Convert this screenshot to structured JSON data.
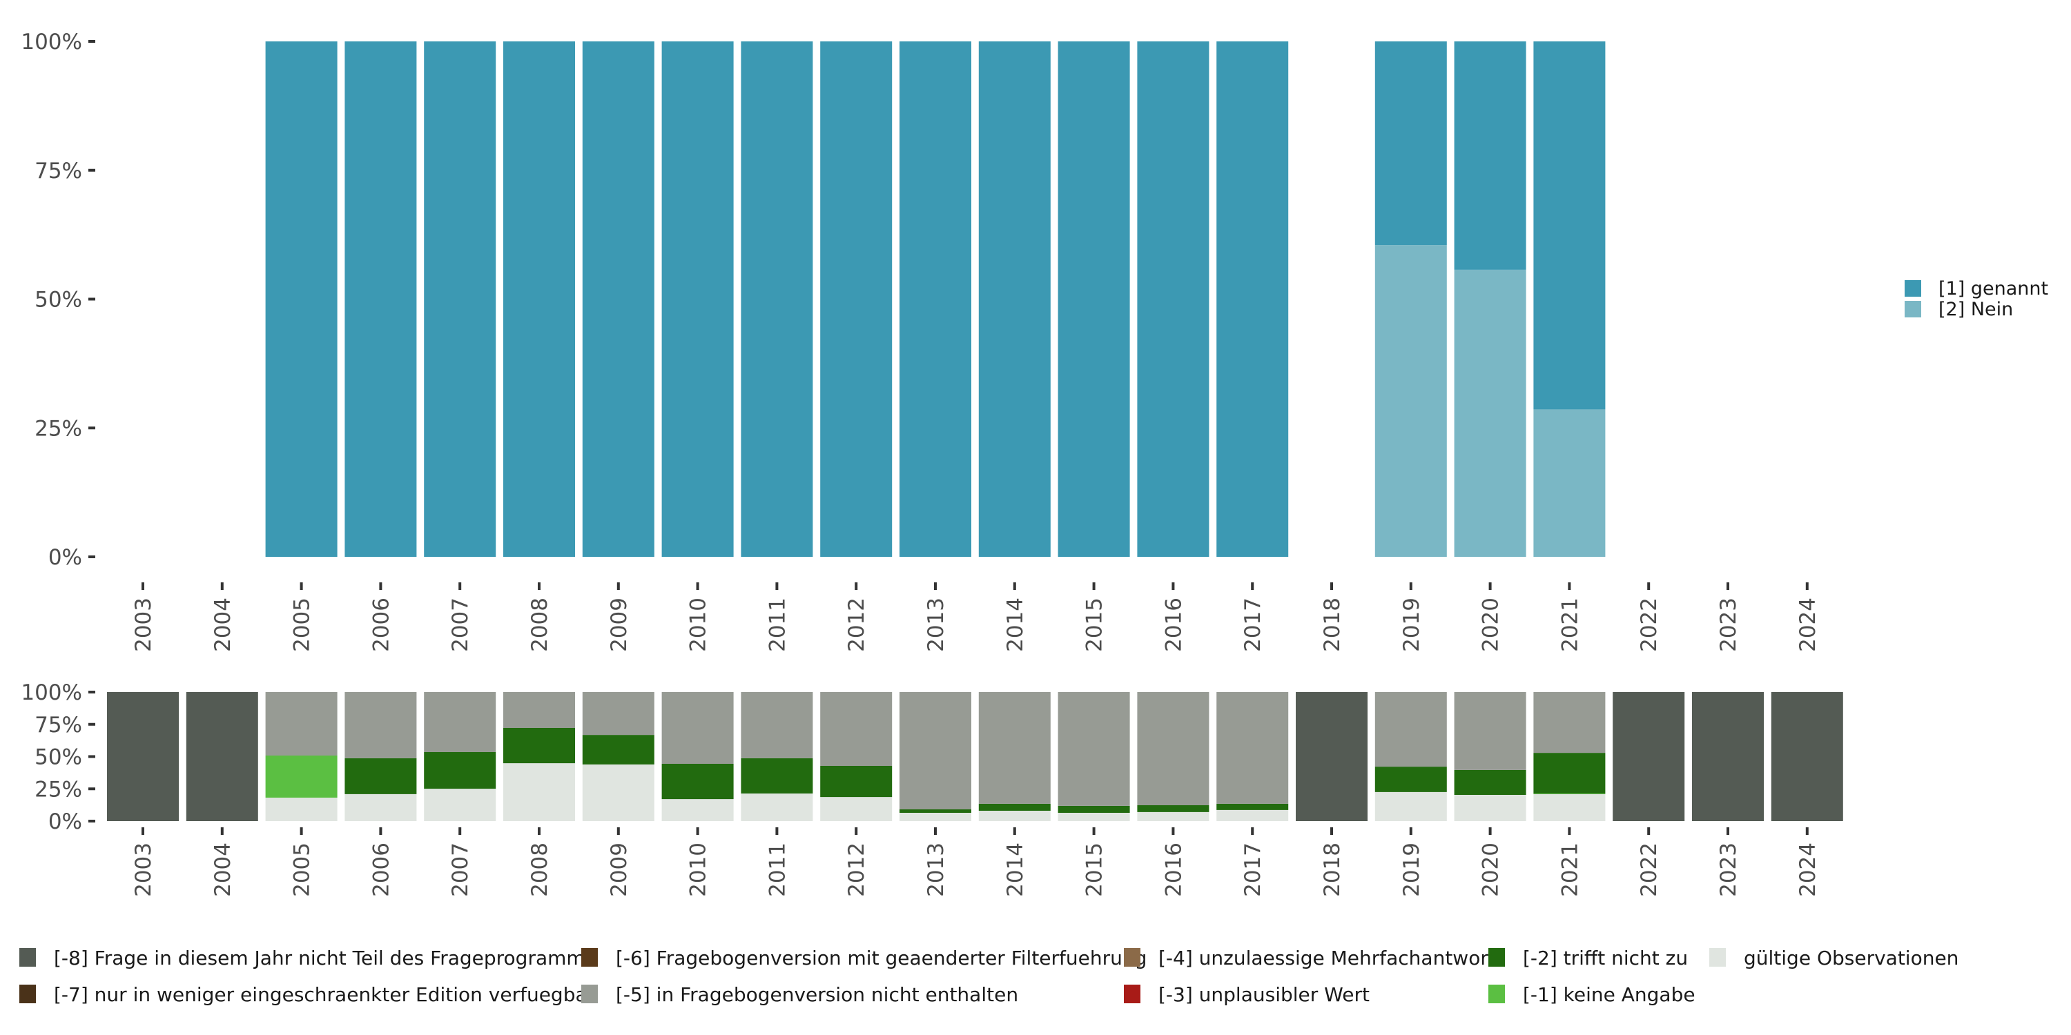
{
  "chart_data": [
    {
      "type": "bar",
      "stacked": true,
      "normalized": true,
      "title": "",
      "xlabel": "",
      "ylabel": "",
      "ylim": [
        0,
        100
      ],
      "y_ticks": [
        "0%",
        "25%",
        "50%",
        "75%",
        "100%"
      ],
      "grid": false,
      "legend_position": "right",
      "categories": [
        "2003",
        "2004",
        "2005",
        "2006",
        "2007",
        "2008",
        "2009",
        "2010",
        "2011",
        "2012",
        "2013",
        "2014",
        "2015",
        "2016",
        "2017",
        "2018",
        "2019",
        "2020",
        "2021",
        "2022",
        "2023",
        "2024"
      ],
      "series": [
        {
          "name": "[2] Nein",
          "color": "#7AB7C5",
          "values": [
            null,
            null,
            0,
            0,
            0,
            0,
            0,
            0,
            0,
            0,
            0,
            0,
            0,
            0,
            0,
            null,
            60.5,
            55.7,
            28.6,
            null,
            null,
            null
          ]
        },
        {
          "name": "[1] genannt",
          "color": "#3C99B3",
          "values": [
            null,
            null,
            100,
            100,
            100,
            100,
            100,
            100,
            100,
            100,
            100,
            100,
            100,
            100,
            100,
            null,
            39.5,
            44.3,
            71.4,
            null,
            null,
            null
          ]
        }
      ],
      "legend": [
        {
          "label": "[1] genannt",
          "color": "#3C99B3"
        },
        {
          "label": "[2] Nein",
          "color": "#7AB7C5"
        }
      ]
    },
    {
      "type": "bar",
      "stacked": true,
      "normalized": true,
      "title": "",
      "xlabel": "",
      "ylabel": "",
      "ylim": [
        0,
        100
      ],
      "y_ticks": [
        "0%",
        "25%",
        "50%",
        "75%",
        "100%"
      ],
      "grid": false,
      "legend_position": "bottom",
      "categories": [
        "2003",
        "2004",
        "2005",
        "2006",
        "2007",
        "2008",
        "2009",
        "2010",
        "2011",
        "2012",
        "2013",
        "2014",
        "2015",
        "2016",
        "2017",
        "2018",
        "2019",
        "2020",
        "2021",
        "2022",
        "2023",
        "2024"
      ],
      "series": [
        {
          "name": "gültige Observationen",
          "color": "#E0E5E0",
          "values": [
            0,
            0,
            18.2,
            20.9,
            25.1,
            44.9,
            43.9,
            17.1,
            21.4,
            18.7,
            6.4,
            8.0,
            6.4,
            7.0,
            8.6,
            0,
            22.5,
            20.3,
            20.9,
            0,
            0,
            0
          ]
        },
        {
          "name": "[-1] keine Angabe",
          "color": "#5BBF42",
          "values": [
            0,
            0,
            32.6,
            0,
            0,
            0,
            0,
            0,
            0,
            0,
            0,
            0,
            0,
            0,
            0,
            0,
            0,
            0,
            0.5,
            0,
            0,
            0
          ]
        },
        {
          "name": "[-2] trifft nicht zu",
          "color": "#226B0F",
          "values": [
            0,
            0,
            0,
            27.8,
            28.4,
            27.3,
            22.9,
            27.3,
            27.3,
            24.1,
            2.7,
            5.4,
            5.4,
            5.3,
            4.8,
            0,
            19.7,
            19.3,
            31.5,
            0,
            0,
            0
          ]
        },
        {
          "name": "[-3] unplausibler Wert",
          "color": "#A81B17",
          "values": [
            0,
            0,
            0,
            0,
            0,
            0,
            0,
            0,
            0,
            0,
            0,
            0,
            0,
            0,
            0,
            0,
            0,
            0,
            0,
            0,
            0,
            0
          ]
        },
        {
          "name": "[-4] unzulaessige Mehrfachantwort",
          "color": "#8B6A48",
          "values": [
            0,
            0,
            0,
            0,
            0,
            0,
            0,
            0,
            0,
            0,
            0,
            0,
            0,
            0,
            0,
            0,
            0,
            0,
            0,
            0,
            0,
            0
          ]
        },
        {
          "name": "[-5] in Fragebogenversion nicht enthalten",
          "color": "#979B94",
          "values": [
            0,
            0,
            49.2,
            51.3,
            46.5,
            27.8,
            33.2,
            55.6,
            51.3,
            57.2,
            90.9,
            86.6,
            88.2,
            87.7,
            86.6,
            0,
            57.8,
            60.4,
            47.1,
            0,
            0,
            0
          ]
        },
        {
          "name": "[-6] Fragebogenversion mit geaenderter Filterfuehrung",
          "color": "#5A3A1A",
          "values": [
            0,
            0,
            0,
            0,
            0,
            0,
            0,
            0,
            0,
            0,
            0,
            0,
            0,
            0,
            0,
            0,
            0,
            0,
            0,
            0,
            0,
            0
          ]
        },
        {
          "name": "[-7] nur in weniger eingeschraenkter Edition verfuegbar",
          "color": "#4A3219",
          "values": [
            0,
            0,
            0,
            0,
            0,
            0,
            0,
            0,
            0,
            0,
            0,
            0,
            0,
            0,
            0,
            0,
            0,
            0,
            0,
            0,
            0,
            0
          ]
        },
        {
          "name": "[-8] Frage in diesem Jahr nicht Teil des Frageprogramms",
          "color": "#545B54",
          "values": [
            100,
            100,
            0,
            0,
            0,
            0,
            0,
            0,
            0,
            0,
            0,
            0,
            0,
            0,
            0,
            100,
            0,
            0,
            0,
            100,
            100,
            100
          ]
        }
      ],
      "legend": [
        {
          "label": "[-8] Frage in diesem Jahr nicht Teil des Frageprogramms",
          "color": "#545B54"
        },
        {
          "label": "[-7] nur in weniger eingeschraenkter Edition verfuegbar",
          "color": "#4A3219"
        },
        {
          "label": "[-6] Fragebogenversion mit geaenderter Filterfuehrung",
          "color": "#5A3A1A"
        },
        {
          "label": "[-5] in Fragebogenversion nicht enthalten",
          "color": "#979B94"
        },
        {
          "label": "[-4] unzulaessige Mehrfachantwort",
          "color": "#8B6A48"
        },
        {
          "label": "[-3] unplausibler Wert",
          "color": "#A81B17"
        },
        {
          "label": "[-2] trifft nicht zu",
          "color": "#226B0F"
        },
        {
          "label": "[-1] keine Angabe",
          "color": "#5BBF42"
        },
        {
          "label": "gültige Observationen",
          "color": "#E0E5E0"
        }
      ]
    }
  ]
}
